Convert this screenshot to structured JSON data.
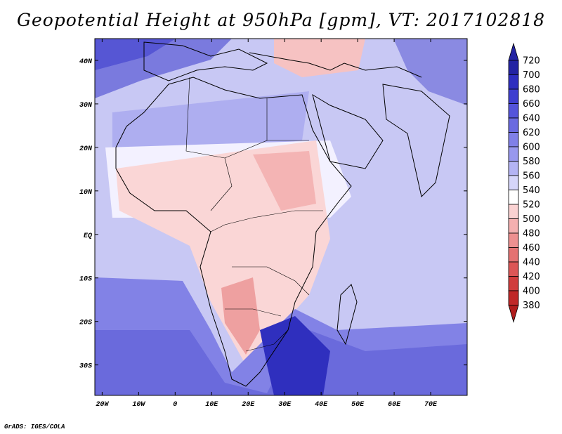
{
  "title": "Geopotential Height at 950hPa [gpm], VT: 2017102818",
  "credit": "GrADS: IGES/COLA",
  "map": {
    "lon_range": [
      -22,
      80
    ],
    "lat_range": [
      -37,
      45
    ],
    "lat_ticks": [
      {
        "value": 40,
        "label": "40N"
      },
      {
        "value": 30,
        "label": "30N"
      },
      {
        "value": 20,
        "label": "20N"
      },
      {
        "value": 10,
        "label": "10N"
      },
      {
        "value": 0,
        "label": "EQ"
      },
      {
        "value": -10,
        "label": "10S"
      },
      {
        "value": -20,
        "label": "20S"
      },
      {
        "value": -30,
        "label": "30S"
      }
    ],
    "lon_ticks": [
      {
        "value": -20,
        "label": "20W"
      },
      {
        "value": -10,
        "label": "10W"
      },
      {
        "value": 0,
        "label": "0"
      },
      {
        "value": 10,
        "label": "10E"
      },
      {
        "value": 20,
        "label": "20E"
      },
      {
        "value": 30,
        "label": "30E"
      },
      {
        "value": 40,
        "label": "40E"
      },
      {
        "value": 50,
        "label": "50E"
      },
      {
        "value": 60,
        "label": "60E"
      },
      {
        "value": 70,
        "label": "70E"
      }
    ]
  },
  "colorbar": {
    "levels": [
      "720",
      "700",
      "680",
      "660",
      "640",
      "620",
      "600",
      "580",
      "560",
      "540",
      "520",
      "500",
      "480",
      "460",
      "440",
      "420",
      "400",
      "380"
    ],
    "colors": [
      "#2323a3",
      "#2e2ec0",
      "#3f3fd0",
      "#5454db",
      "#6a6ae0",
      "#8080e8",
      "#9898ee",
      "#b4b4f4",
      "#d6d6fa",
      "#ffffff",
      "#fad2d2",
      "#f4b0b0",
      "#ee9090",
      "#e47272",
      "#dc5656",
      "#d03c3c",
      "#c02828"
    ],
    "colors_note": "17 bins between the 18 level labels, top (high) to bottom (low)"
  }
}
